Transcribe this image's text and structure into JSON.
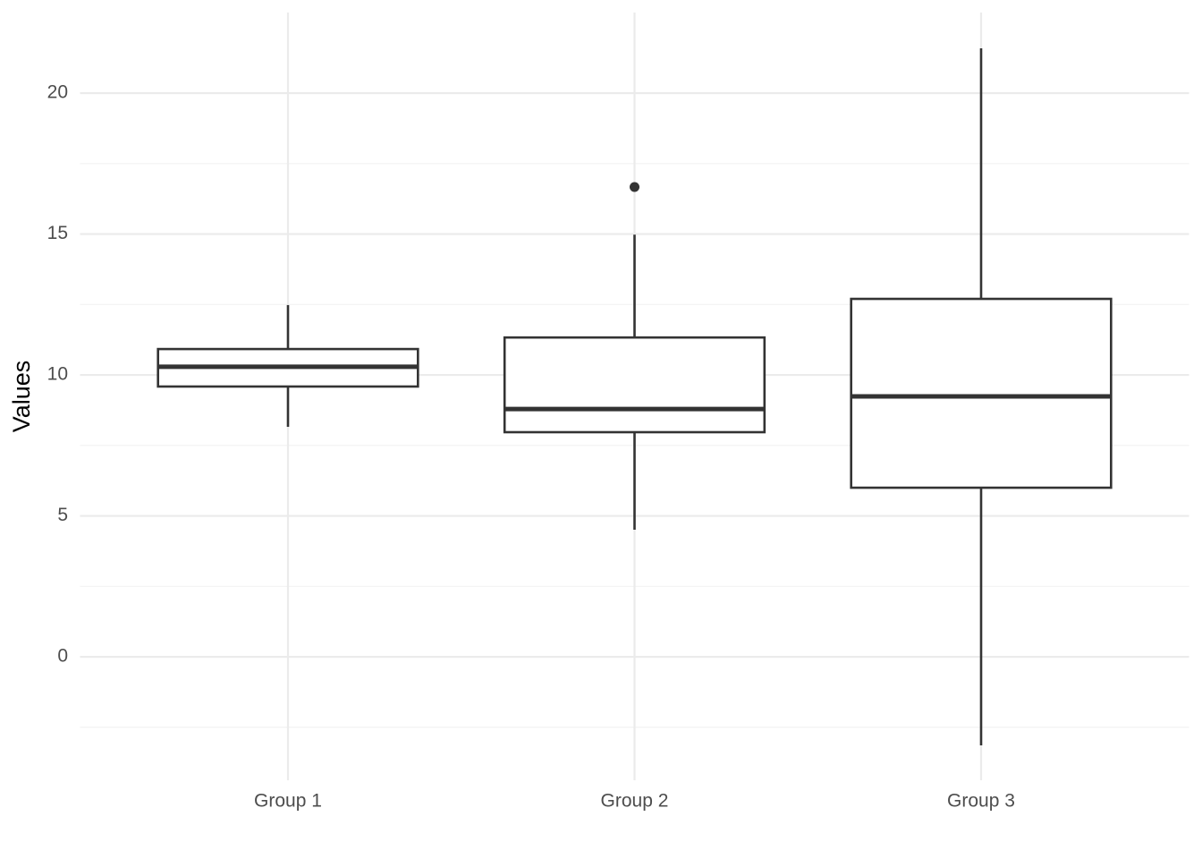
{
  "chart_data": {
    "type": "box",
    "y_label": "Values",
    "categories": [
      "Group 1",
      "Group 2",
      "Group 3"
    ],
    "boxes": [
      {
        "whisker_low": 8.16,
        "q1": 9.59,
        "median": 10.29,
        "q3": 10.92,
        "whisker_high": 12.48,
        "outliers": []
      },
      {
        "whisker_low": 4.51,
        "q1": 7.97,
        "median": 8.79,
        "q3": 11.33,
        "whisker_high": 14.98,
        "outliers": [
          16.67
        ]
      },
      {
        "whisker_low": -3.14,
        "q1": 6.0,
        "median": 9.24,
        "q3": 12.7,
        "whisker_high": 21.59,
        "outliers": []
      }
    ],
    "color": "#333333",
    "ylim": [
      -4.38,
      22.86
    ],
    "yticks": [
      0,
      5,
      10,
      15,
      20
    ],
    "minor_yticks": [
      -2.5,
      2.5,
      7.5,
      12.5,
      17.5
    ],
    "grid": true
  }
}
